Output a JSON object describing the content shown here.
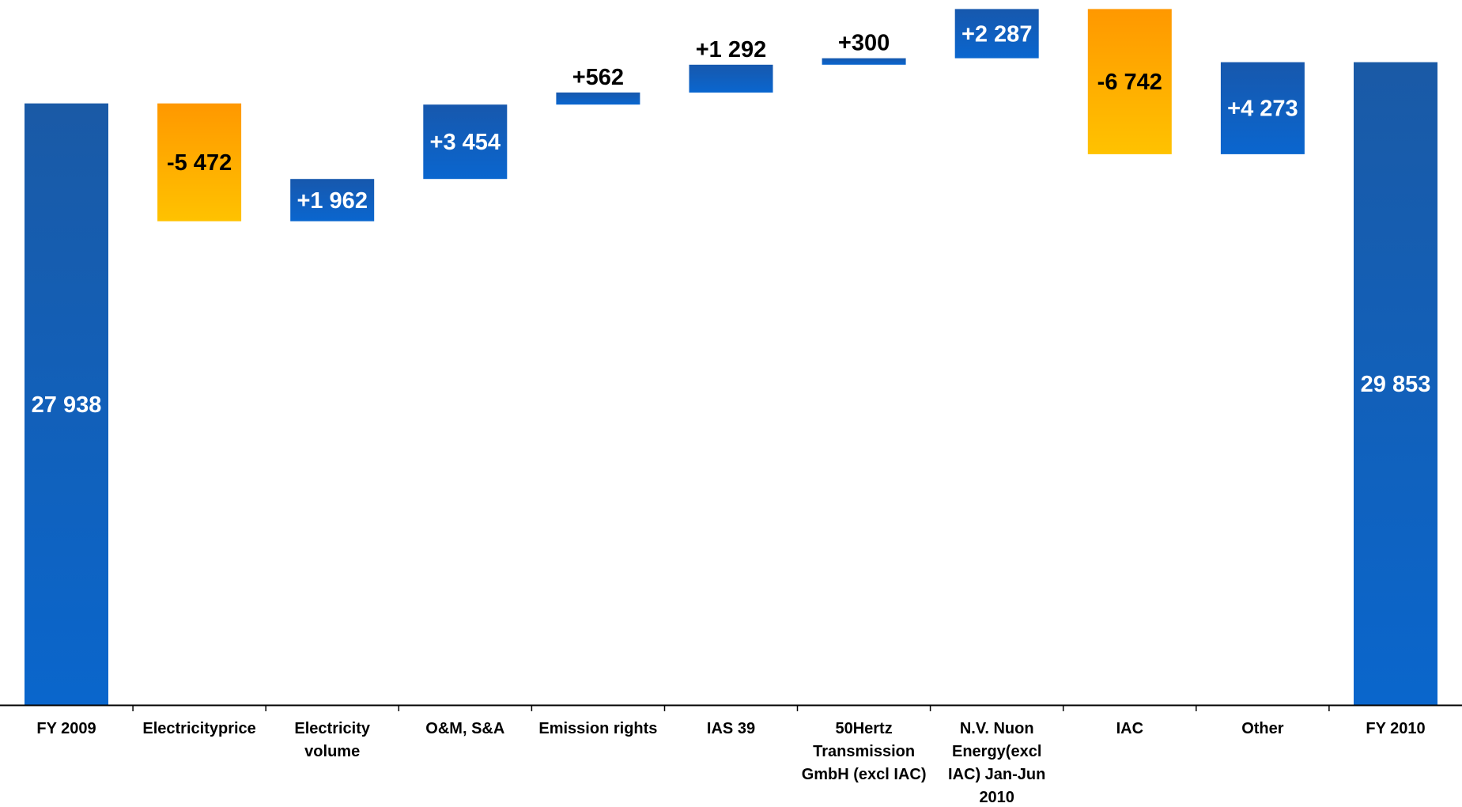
{
  "chart_data": {
    "type": "bar",
    "subtype": "waterfall",
    "title": "",
    "xlabel": "",
    "ylabel": "",
    "ylim": [
      0,
      32300
    ],
    "grid": false,
    "legend": "none",
    "colors": {
      "total": "#1a5fb0",
      "increase": "#0f63c2",
      "decrease_top": "#ff9a00",
      "decrease_bottom": "#ffbf00",
      "axis": "#000000"
    },
    "categories": [
      [
        "FY 2009"
      ],
      [
        "Electricityprice"
      ],
      [
        "Electricity",
        "volume"
      ],
      [
        "O&M, S&A"
      ],
      [
        "Emission rights"
      ],
      [
        "IAS 39"
      ],
      [
        "50Hertz",
        "Transmission",
        "GmbH (excl IAC)"
      ],
      [
        "N.V. Nuon",
        "Energy(excl",
        "IAC) Jan-Jun",
        "2010"
      ],
      [
        "IAC"
      ],
      [
        "Other"
      ],
      [
        "FY 2010"
      ]
    ],
    "steps": [
      {
        "kind": "total",
        "value": 27938,
        "label": "27 938",
        "label_pos": "inside"
      },
      {
        "kind": "decrease",
        "value": -5472,
        "label": "-5 472",
        "label_pos": "inside"
      },
      {
        "kind": "increase",
        "value": 1962,
        "label": "+1 962",
        "label_pos": "inside"
      },
      {
        "kind": "increase",
        "value": 3454,
        "label": "+3 454",
        "label_pos": "inside"
      },
      {
        "kind": "increase",
        "value": 562,
        "label": "+562",
        "label_pos": "above"
      },
      {
        "kind": "increase",
        "value": 1292,
        "label": "+1 292",
        "label_pos": "above"
      },
      {
        "kind": "increase",
        "value": 300,
        "label": "+300",
        "label_pos": "above"
      },
      {
        "kind": "increase",
        "value": 2287,
        "label": "+2 287",
        "label_pos": "inside"
      },
      {
        "kind": "decrease",
        "value": -6742,
        "label": "-6 742",
        "label_pos": "inside"
      },
      {
        "kind": "increase",
        "value": 4273,
        "label": "+4 273",
        "label_pos": "inside"
      },
      {
        "kind": "total",
        "value": 29853,
        "label": "29 853",
        "label_pos": "inside"
      }
    ]
  }
}
